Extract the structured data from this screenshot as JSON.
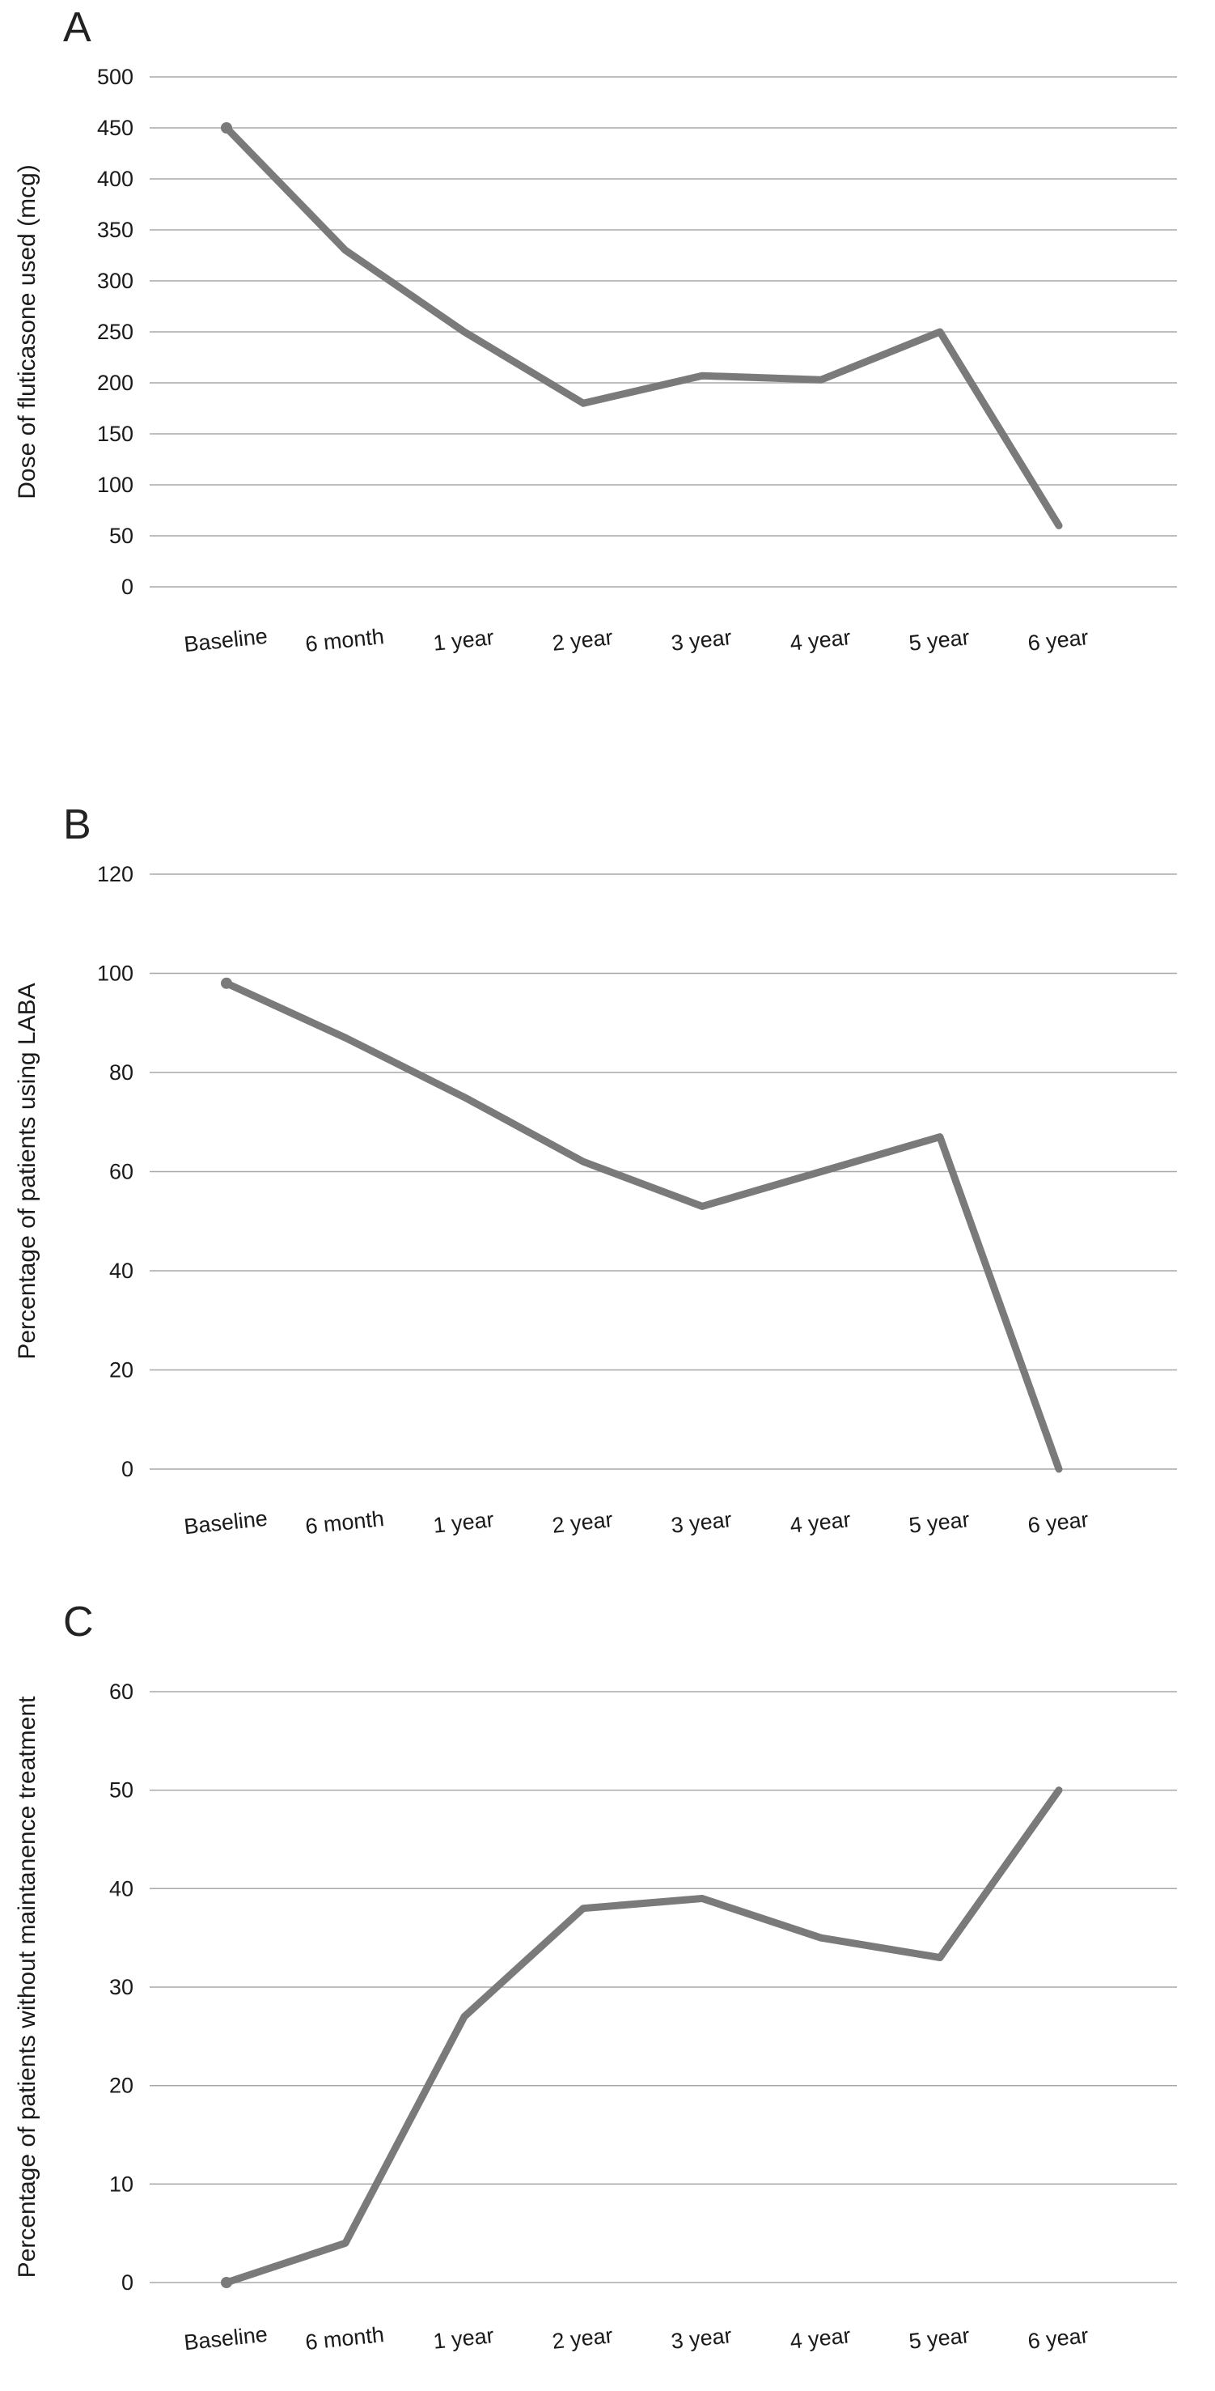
{
  "figure": {
    "panels": [
      {
        "label": "A",
        "ylabel": "Dose of fluticasone used (mcg)"
      },
      {
        "label": "B",
        "ylabel": "Percentage of patients using LABA"
      },
      {
        "label": "C",
        "ylabel": "Percentage of patients without maintanence treatment"
      }
    ],
    "line_color": "#7a7a7a",
    "grid_color": "#a8a8a8"
  },
  "chart_data": [
    {
      "type": "line",
      "panel": "A",
      "title": "",
      "xlabel": "",
      "ylabel": "Dose of fluticasone used (mcg)",
      "categories": [
        "Baseline",
        "6 month",
        "1 year",
        "2 year",
        "3 year",
        "4 year",
        "5 year",
        "6 year"
      ],
      "values": [
        450,
        330,
        250,
        180,
        207,
        203,
        250,
        60
      ],
      "ylim": [
        0,
        500
      ],
      "ytick_step": 50,
      "yticks": [
        0,
        50,
        100,
        150,
        200,
        250,
        300,
        350,
        400,
        450,
        500
      ],
      "grid": true,
      "legend": "none",
      "line_color": "#7a7a7a"
    },
    {
      "type": "line",
      "panel": "B",
      "title": "",
      "xlabel": "",
      "ylabel": "Percentage of patients using LABA",
      "categories": [
        "Baseline",
        "6 month",
        "1 year",
        "2 year",
        "3 year",
        "4 year",
        "5 year",
        "6 year"
      ],
      "values": [
        98,
        87,
        75,
        62,
        53,
        60,
        67,
        0
      ],
      "ylim": [
        0,
        120
      ],
      "ytick_step": 20,
      "yticks": [
        0,
        20,
        40,
        60,
        80,
        100,
        120
      ],
      "grid": true,
      "legend": "none",
      "line_color": "#7a7a7a"
    },
    {
      "type": "line",
      "panel": "C",
      "title": "",
      "xlabel": "",
      "ylabel": "Percentage of patients without maintanence treatment",
      "categories": [
        "Baseline",
        "6 month",
        "1 year",
        "2 year",
        "3 year",
        "4 year",
        "5 year",
        "6 year"
      ],
      "values": [
        0,
        4,
        27,
        38,
        39,
        35,
        33,
        50
      ],
      "ylim": [
        0,
        60
      ],
      "ytick_step": 10,
      "yticks": [
        0,
        10,
        20,
        30,
        40,
        50,
        60
      ],
      "grid": true,
      "legend": "none",
      "line_color": "#7a7a7a"
    }
  ]
}
